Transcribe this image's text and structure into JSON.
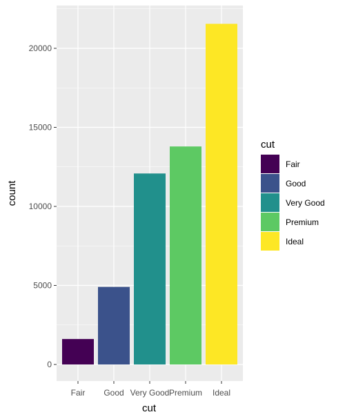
{
  "chart_data": {
    "type": "bar",
    "categories": [
      "Fair",
      "Good",
      "Very Good",
      "Premium",
      "Ideal"
    ],
    "values": [
      1610,
      4906,
      12082,
      13791,
      21551
    ],
    "colors": [
      "#440154",
      "#3b528b",
      "#21908c",
      "#5dc963",
      "#fde725"
    ],
    "xlabel": "cut",
    "ylabel": "count",
    "ylim": [
      0,
      22628
    ],
    "yticks": [
      0,
      5000,
      10000,
      15000,
      20000
    ],
    "ytick_labels": [
      "0",
      "5000",
      "10000",
      "15000",
      "20000"
    ],
    "grid": true,
    "legend": {
      "title": "cut",
      "placement": "right",
      "entries": [
        "Fair",
        "Good",
        "Very Good",
        "Premium",
        "Ideal"
      ]
    }
  }
}
